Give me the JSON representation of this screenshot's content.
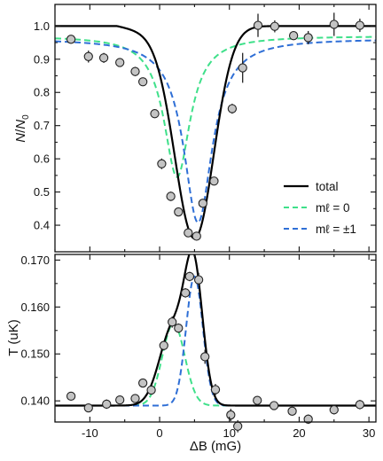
{
  "colors": {
    "total": "#000000",
    "m0": "#3fe08a",
    "m1": "#2f6fd6",
    "marker_fill": "#c4c4c4",
    "marker_edge": "#222222"
  },
  "chart_data": [
    {
      "type": "line",
      "panel": "top",
      "title": "",
      "xlabel": "",
      "ylabel": "N/N₀",
      "xlim": [
        -15,
        31
      ],
      "ylim": [
        0.32,
        1.065
      ],
      "yticks": [
        "0.4",
        "0.5",
        "0.6",
        "0.7",
        "0.8",
        "0.9",
        "1.0"
      ],
      "legend": {
        "placement": "right",
        "entries": [
          {
            "name": "total",
            "style": "solid",
            "color_key": "total"
          },
          {
            "name": "mℓ = 0",
            "style": "dashed",
            "color_key": "m0"
          },
          {
            "name": "mℓ = ±1",
            "style": "dashed",
            "color_key": "m1"
          }
        ]
      },
      "points": [
        {
          "x": -12.7,
          "y": 0.96,
          "yerr": 0.012
        },
        {
          "x": -10.2,
          "y": 0.908,
          "yerr": 0.018
        },
        {
          "x": -8.0,
          "y": 0.904,
          "yerr": 0.015
        },
        {
          "x": -5.7,
          "y": 0.89,
          "yerr": 0.013
        },
        {
          "x": -3.5,
          "y": 0.863,
          "yerr": 0.014
        },
        {
          "x": -2.4,
          "y": 0.832,
          "yerr": 0.012
        },
        {
          "x": -0.7,
          "y": 0.736,
          "yerr": 0.013
        },
        {
          "x": 0.3,
          "y": 0.585,
          "yerr": 0.016
        },
        {
          "x": 1.6,
          "y": 0.487,
          "yerr": 0.014
        },
        {
          "x": 2.7,
          "y": 0.44,
          "yerr": 0.012
        },
        {
          "x": 4.1,
          "y": 0.377,
          "yerr": 0.012
        },
        {
          "x": 5.3,
          "y": 0.367,
          "yerr": 0.013
        },
        {
          "x": 6.2,
          "y": 0.466,
          "yerr": 0.012
        },
        {
          "x": 7.8,
          "y": 0.533,
          "yerr": 0.012
        },
        {
          "x": 10.4,
          "y": 0.751,
          "yerr": 0.015
        },
        {
          "x": 11.9,
          "y": 0.874,
          "yerr": 0.045
        },
        {
          "x": 14.1,
          "y": 1.002,
          "yerr": 0.035
        },
        {
          "x": 16.5,
          "y": 0.999,
          "yerr": 0.018
        },
        {
          "x": 19.2,
          "y": 0.971,
          "yerr": 0.013
        },
        {
          "x": 21.3,
          "y": 0.965,
          "yerr": 0.02
        },
        {
          "x": 25.0,
          "y": 1.005,
          "yerr": 0.035
        },
        {
          "x": 28.7,
          "y": 1.002,
          "yerr": 0.02
        }
      ],
      "curves": {
        "total": {
          "baseline_left": 0.95,
          "baseline_right": 1.0,
          "slope": -0.00075,
          "depth_center": 0.36,
          "center": 5.0,
          "width": 5.0
        },
        "m0": {
          "baseline": 0.97,
          "min": 0.545,
          "center": 2.5,
          "width": 2.3
        },
        "m1": {
          "baseline": 0.962,
          "min": 0.408,
          "center": 5.5,
          "width": 2.5
        }
      }
    },
    {
      "type": "line",
      "panel": "bottom",
      "title": "",
      "xlabel": "ΔB (mG)",
      "ylabel": "T (uK)",
      "xlim": [
        -15,
        31
      ],
      "ylim": [
        0.1355,
        0.1712
      ],
      "xticks": [
        "-10",
        "0",
        "10",
        "20",
        "30"
      ],
      "yticks": [
        "0.140",
        "0.150",
        "0.160",
        "0.170"
      ],
      "points": [
        {
          "x": -12.7,
          "y": 0.141,
          "yerr": 0.0008
        },
        {
          "x": -10.2,
          "y": 0.1385,
          "yerr": 0.0006
        },
        {
          "x": -7.6,
          "y": 0.1393,
          "yerr": 0.001
        },
        {
          "x": -5.7,
          "y": 0.1402,
          "yerr": 0.0008
        },
        {
          "x": -3.5,
          "y": 0.1405,
          "yerr": 0.0008
        },
        {
          "x": -2.4,
          "y": 0.1438,
          "yerr": 0.0009
        },
        {
          "x": -1.2,
          "y": 0.1423,
          "yerr": 0.0008
        },
        {
          "x": 0.6,
          "y": 0.1518,
          "yerr": 0.001
        },
        {
          "x": 1.8,
          "y": 0.1568,
          "yerr": 0.0012
        },
        {
          "x": 2.7,
          "y": 0.1555,
          "yerr": 0.001
        },
        {
          "x": 3.7,
          "y": 0.163,
          "yerr": 0.001
        },
        {
          "x": 4.3,
          "y": 0.1665,
          "yerr": 0.001
        },
        {
          "x": 5.6,
          "y": 0.1658,
          "yerr": 0.0015
        },
        {
          "x": 6.5,
          "y": 0.1494,
          "yerr": 0.0015
        },
        {
          "x": 8.0,
          "y": 0.1424,
          "yerr": 0.0012
        },
        {
          "x": 10.2,
          "y": 0.137,
          "yerr": 0.0013
        },
        {
          "x": 11.2,
          "y": 0.1346,
          "yerr": 0.0013
        },
        {
          "x": 14.0,
          "y": 0.1401,
          "yerr": 0.0007
        },
        {
          "x": 16.4,
          "y": 0.139,
          "yerr": 0.0007
        },
        {
          "x": 19.0,
          "y": 0.1378,
          "yerr": 0.0008
        },
        {
          "x": 21.3,
          "y": 0.1361,
          "yerr": 0.001
        },
        {
          "x": 25.0,
          "y": 0.1381,
          "yerr": 0.001
        },
        {
          "x": 28.7,
          "y": 0.1392,
          "yerr": 0.001
        }
      ],
      "curves": {
        "total": {
          "baseline": 0.139,
          "peaks": [
            {
              "amp": 0.0165,
              "center": 1.9,
              "width": 1.9
            },
            {
              "amp": 0.0278,
              "center": 4.9,
              "width": 1.3
            }
          ]
        },
        "m0": {
          "baseline": 0.139,
          "max": 0.1565,
          "center": 2.0,
          "width": 1.6
        },
        "m1": {
          "baseline": 0.139,
          "max": 0.1665,
          "center": 5.0,
          "width": 1.2
        }
      }
    }
  ]
}
